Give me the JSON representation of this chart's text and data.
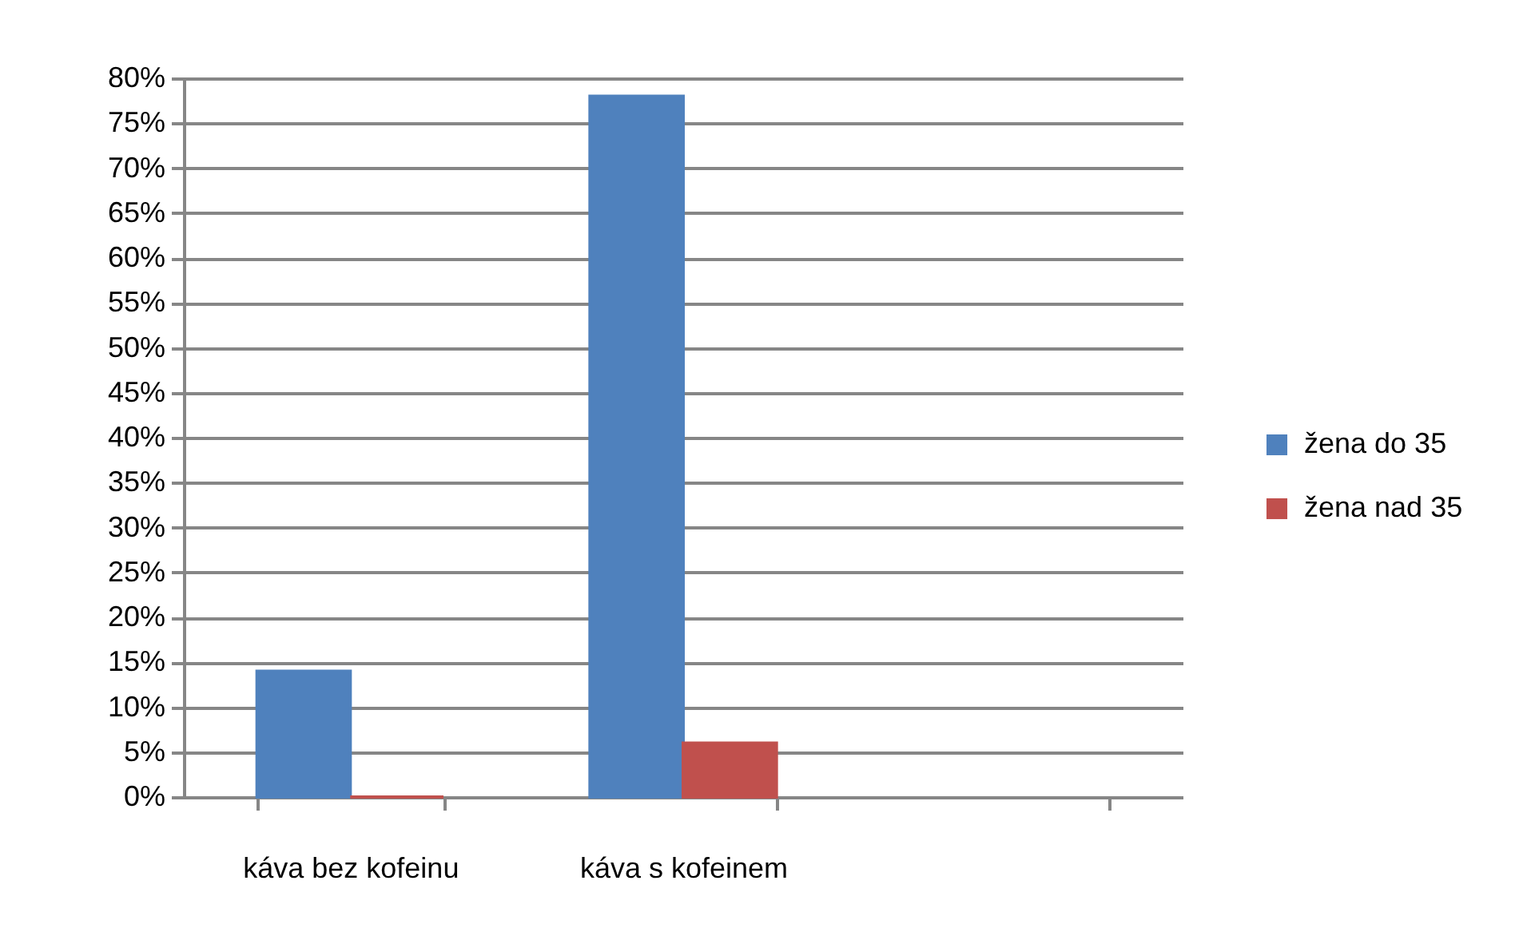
{
  "chart_data": {
    "type": "bar",
    "categories": [
      "káva bez kofeinu",
      "káva s kofeinem",
      null
    ],
    "series": [
      {
        "name": "žena do 35",
        "color": "#4f81bd",
        "values": [
          14,
          78,
          null
        ]
      },
      {
        "name": "žena nad 35",
        "color": "#c0504d",
        "values": [
          0,
          6,
          null
        ]
      }
    ],
    "ylim": [
      0,
      80
    ],
    "yticks": [
      {
        "value": 0,
        "label": "0%"
      },
      {
        "value": 5,
        "label": "5%"
      },
      {
        "value": 10,
        "label": "10%"
      },
      {
        "value": 15,
        "label": "15%"
      },
      {
        "value": 20,
        "label": "20%"
      },
      {
        "value": 25,
        "label": "25%"
      },
      {
        "value": 30,
        "label": "30%"
      },
      {
        "value": 35,
        "label": "35%"
      },
      {
        "value": 40,
        "label": "40%"
      },
      {
        "value": 45,
        "label": "45%"
      },
      {
        "value": 50,
        "label": "50%"
      },
      {
        "value": 55,
        "label": "55%"
      },
      {
        "value": 60,
        "label": "60%"
      },
      {
        "value": 65,
        "label": "65%"
      },
      {
        "value": 70,
        "label": "70%"
      },
      {
        "value": 75,
        "label": "75%"
      },
      {
        "value": 80,
        "label": "80%"
      }
    ],
    "grid": "y",
    "legend": "right"
  }
}
